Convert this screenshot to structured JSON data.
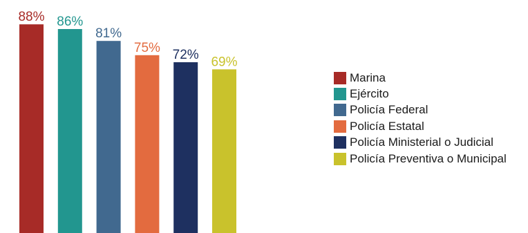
{
  "chart_data": {
    "type": "bar",
    "categories": [
      "Marina",
      "Ejército",
      "Policía Federal",
      "Policía Estatal",
      "Policía Ministerial o Judicial",
      "Policía Preventiva o Municipal"
    ],
    "values": [
      88,
      86,
      81,
      75,
      72,
      69
    ],
    "value_labels": [
      "88%",
      "86%",
      "81%",
      "75%",
      "72%",
      "69%"
    ],
    "colors": [
      "#a72b27",
      "#22968f",
      "#41698f",
      "#e36b3f",
      "#1e3060",
      "#c9c22c"
    ],
    "title": "",
    "xlabel": "",
    "ylabel": "",
    "ylim": [
      0,
      100
    ],
    "grid": false,
    "legend_position": "right"
  }
}
